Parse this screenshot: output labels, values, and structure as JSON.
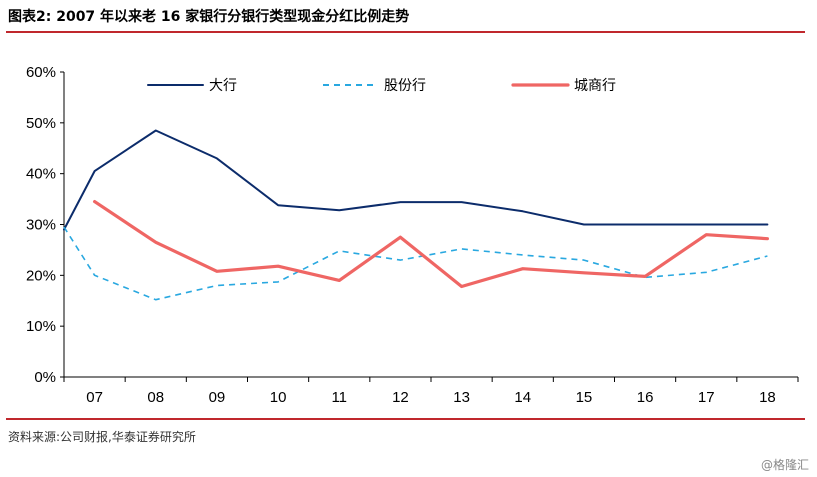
{
  "header": {
    "title": "图表2:  2007 年以来老 16 家银行分银行类型现金分红比例走势"
  },
  "footer": {
    "source": "资料来源:公司财报,华泰证券研究所",
    "watermark": "@格隆汇"
  },
  "colors": {
    "rule": "#c0282d"
  },
  "chart_data": {
    "type": "line",
    "title": "",
    "xlabel": "",
    "ylabel": "",
    "categories": [
      "07",
      "08",
      "09",
      "10",
      "11",
      "12",
      "13",
      "14",
      "15",
      "16",
      "17",
      "18"
    ],
    "ylim": [
      0,
      60
    ],
    "yticks": [
      0,
      10,
      20,
      30,
      40,
      50,
      60
    ],
    "ytick_labels": [
      "0%",
      "10%",
      "20%",
      "30%",
      "40%",
      "50%",
      "60%"
    ],
    "grid": false,
    "legend_position": "top",
    "series": [
      {
        "name": "大行",
        "color": "#0c2c6b",
        "style": "solid",
        "width": 2,
        "lead_in": 29,
        "values": [
          40.5,
          48.5,
          43,
          33.8,
          32.8,
          34.4,
          34.4,
          32.6,
          30,
          30,
          30,
          30
        ]
      },
      {
        "name": "股份行",
        "color": "#29a8e0",
        "style": "dashed",
        "width": 1.6,
        "lead_in": 29.5,
        "values": [
          20,
          15.2,
          18,
          18.7,
          24.8,
          23,
          25.2,
          24,
          23,
          19.6,
          20.6,
          23.8
        ]
      },
      {
        "name": "城商行",
        "color": "#ef6664",
        "style": "solid",
        "width": 3.2,
        "lead_in": null,
        "values": [
          34.5,
          26.5,
          20.8,
          21.8,
          19,
          27.5,
          17.8,
          21.3,
          20.5,
          19.8,
          28,
          27.2
        ]
      }
    ]
  }
}
